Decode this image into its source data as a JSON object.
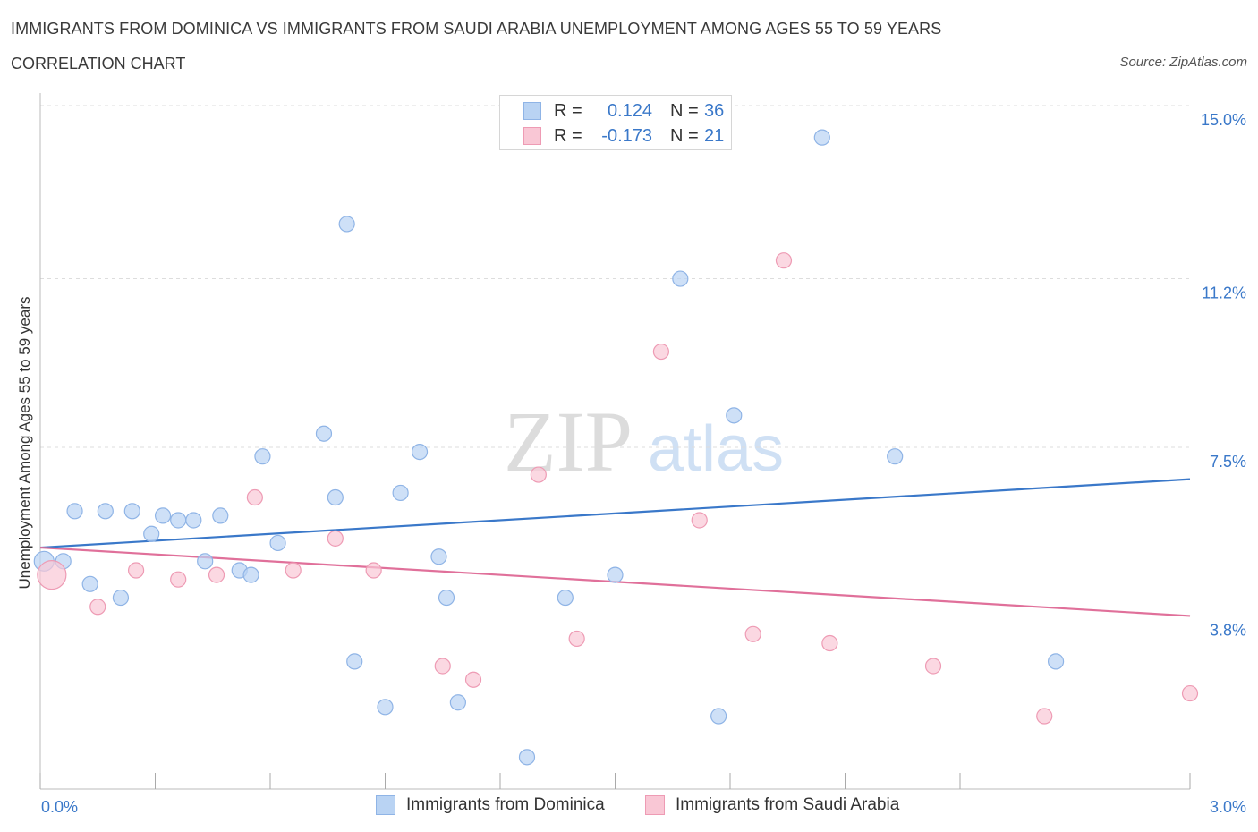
{
  "header": {
    "title": "IMMIGRANTS FROM DOMINICA VS IMMIGRANTS FROM SAUDI ARABIA UNEMPLOYMENT AMONG AGES 55 TO 59 YEARS",
    "subtitle": "CORRELATION CHART",
    "source": "Source: ZipAtlas.com"
  },
  "watermark": {
    "zip": "ZIP",
    "atlas": "atlas"
  },
  "legend": {
    "rows": [
      {
        "r_label": "R =",
        "r_value": "0.124",
        "n_label": "N =",
        "n_value": "36"
      },
      {
        "r_label": "R =",
        "r_value": "-0.173",
        "n_label": "N =",
        "n_value": "21"
      }
    ]
  },
  "colors": {
    "blue_fill": "#b9d3f3",
    "blue_stroke": "#8fb4e6",
    "blue_line": "#3a78c9",
    "pink_fill": "#f9c7d5",
    "pink_stroke": "#ee9bb4",
    "pink_line": "#e0709a",
    "axis_text": "#3a78c9",
    "grid": "#dddddd"
  },
  "chart_data": {
    "type": "scatter",
    "title": "IMMIGRANTS FROM DOMINICA VS IMMIGRANTS FROM SAUDI ARABIA UNEMPLOYMENT AMONG AGES 55 TO 59 YEARS",
    "xlabel": "",
    "ylabel": "Unemployment Among Ages 55 to 59 years",
    "xlim": [
      0.0,
      3.0
    ],
    "ylim": [
      0.0,
      15.0
    ],
    "x_tick_labels": [
      "0.0%",
      "3.0%"
    ],
    "y_tick_labels": [
      "15.0%",
      "11.2%",
      "7.5%",
      "3.8%"
    ],
    "y_tick_values": [
      15.0,
      11.2,
      7.5,
      3.8
    ],
    "series": [
      {
        "name": "Immigrants from Dominica",
        "color": "#b9d3f3",
        "points": [
          [
            0.01,
            5.0
          ],
          [
            0.06,
            5.0
          ],
          [
            0.09,
            6.1
          ],
          [
            0.13,
            4.5
          ],
          [
            0.17,
            6.1
          ],
          [
            0.21,
            4.2
          ],
          [
            0.24,
            6.1
          ],
          [
            0.29,
            5.6
          ],
          [
            0.32,
            6.0
          ],
          [
            0.36,
            5.9
          ],
          [
            0.4,
            5.9
          ],
          [
            0.43,
            5.0
          ],
          [
            0.47,
            6.0
          ],
          [
            0.52,
            4.8
          ],
          [
            0.55,
            4.7
          ],
          [
            0.58,
            7.3
          ],
          [
            0.62,
            5.4
          ],
          [
            0.74,
            7.8
          ],
          [
            0.77,
            6.4
          ],
          [
            0.8,
            12.4
          ],
          [
            0.82,
            2.8
          ],
          [
            0.9,
            1.8
          ],
          [
            0.94,
            6.5
          ],
          [
            0.99,
            7.4
          ],
          [
            1.04,
            5.1
          ],
          [
            1.06,
            4.2
          ],
          [
            1.09,
            1.9
          ],
          [
            1.27,
            0.7
          ],
          [
            1.37,
            4.2
          ],
          [
            1.5,
            4.7
          ],
          [
            1.67,
            11.2
          ],
          [
            1.77,
            1.6
          ],
          [
            1.81,
            8.2
          ],
          [
            2.04,
            14.3
          ],
          [
            2.23,
            7.3
          ],
          [
            2.65,
            2.8
          ]
        ]
      },
      {
        "name": "Immigrants from Saudi Arabia",
        "color": "#f9c7d5",
        "points": [
          [
            0.03,
            4.7
          ],
          [
            0.15,
            4.0
          ],
          [
            0.25,
            4.8
          ],
          [
            0.36,
            4.6
          ],
          [
            0.46,
            4.7
          ],
          [
            0.56,
            6.4
          ],
          [
            0.66,
            4.8
          ],
          [
            0.77,
            5.5
          ],
          [
            0.87,
            4.8
          ],
          [
            1.05,
            2.7
          ],
          [
            1.13,
            2.4
          ],
          [
            1.3,
            6.9
          ],
          [
            1.4,
            3.3
          ],
          [
            1.62,
            9.6
          ],
          [
            1.72,
            5.9
          ],
          [
            1.86,
            3.4
          ],
          [
            1.94,
            11.6
          ],
          [
            2.06,
            3.2
          ],
          [
            2.33,
            2.7
          ],
          [
            2.62,
            1.6
          ],
          [
            3.0,
            2.1
          ]
        ]
      }
    ],
    "trend_lines": [
      {
        "name": "Immigrants from Dominica",
        "from": [
          0.0,
          5.3
        ],
        "to": [
          3.0,
          6.8
        ],
        "color": "#3a78c9"
      },
      {
        "name": "Immigrants from Saudi Arabia",
        "from": [
          0.0,
          5.3
        ],
        "to": [
          3.0,
          3.8
        ],
        "color": "#e0709a"
      }
    ],
    "grid": true,
    "legend_position": "top-center"
  },
  "bottom_legend": [
    {
      "label": "Immigrants from Dominica"
    },
    {
      "label": "Immigrants from Saudi Arabia"
    }
  ]
}
